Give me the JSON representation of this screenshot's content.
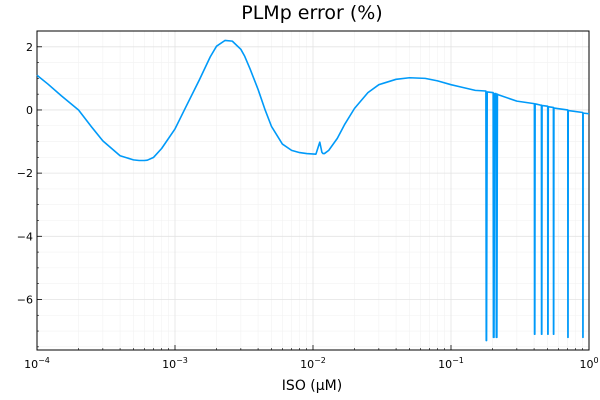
{
  "chart_data": {
    "type": "line",
    "title": "PLMp error (%)",
    "xlabel": "ISO (μM)",
    "ylabel": "",
    "x_scale": "log10",
    "xlim": [
      0.0001,
      1
    ],
    "ylim": [
      -7.6,
      2.5
    ],
    "x_ticks": [
      {
        "value": 0.0001,
        "base": "10",
        "exp": "−4"
      },
      {
        "value": 0.001,
        "base": "10",
        "exp": "−3"
      },
      {
        "value": 0.01,
        "base": "10",
        "exp": "−2"
      },
      {
        "value": 0.1,
        "base": "10",
        "exp": "−1"
      },
      {
        "value": 1,
        "base": "10",
        "exp": "0"
      }
    ],
    "y_ticks": [
      {
        "value": 2,
        "label": "2"
      },
      {
        "value": 0,
        "label": "0"
      },
      {
        "value": -2,
        "label": "−2"
      },
      {
        "value": -4,
        "label": "−4"
      },
      {
        "value": -6,
        "label": "−6"
      }
    ],
    "grid": true,
    "legend": "none",
    "series_color": "#009af9",
    "series": [
      {
        "x": [
          0.0001,
          0.00012,
          0.00015,
          0.0002,
          0.00025,
          0.0003,
          0.0004,
          0.0005,
          0.00055,
          0.0006,
          0.00063,
          0.0007,
          0.0008,
          0.001,
          0.0012,
          0.0015,
          0.0018,
          0.002,
          0.0023,
          0.0026,
          0.003,
          0.0032,
          0.0035,
          0.004,
          0.0045,
          0.005,
          0.006,
          0.007,
          0.008,
          0.009,
          0.0105,
          0.0112,
          0.0114,
          0.0116,
          0.0118,
          0.0121,
          0.013,
          0.015,
          0.017,
          0.02,
          0.025,
          0.03,
          0.04,
          0.05,
          0.065,
          0.08,
          0.1,
          0.12,
          0.15,
          0.178,
          0.179,
          0.18,
          0.181,
          0.183,
          0.2,
          0.202,
          0.203,
          0.205,
          0.207,
          0.21,
          0.212,
          0.213,
          0.215,
          0.217,
          0.22,
          0.3,
          0.4,
          0.402,
          0.403,
          0.405,
          0.407,
          0.41,
          0.45,
          0.452,
          0.453,
          0.455,
          0.457,
          0.46,
          0.5,
          0.502,
          0.503,
          0.505,
          0.507,
          0.51,
          0.55,
          0.552,
          0.553,
          0.555,
          0.557,
          0.56,
          0.6,
          0.7,
          0.702,
          0.703,
          0.705,
          0.707,
          0.71,
          0.9,
          0.902,
          0.903,
          0.905,
          0.907,
          0.91,
          1.0
        ],
        "y": [
          1.1,
          0.82,
          0.45,
          0.0,
          -0.55,
          -0.98,
          -1.45,
          -1.58,
          -1.6,
          -1.6,
          -1.59,
          -1.5,
          -1.22,
          -0.6,
          0.1,
          0.95,
          1.68,
          2.02,
          2.2,
          2.18,
          1.92,
          1.7,
          1.3,
          0.65,
          0.0,
          -0.52,
          -1.08,
          -1.28,
          -1.35,
          -1.38,
          -1.4,
          -1.02,
          -1.18,
          -1.34,
          -1.38,
          -1.38,
          -1.28,
          -0.9,
          -0.45,
          0.05,
          0.55,
          0.8,
          0.97,
          1.02,
          1.0,
          0.92,
          0.8,
          0.72,
          0.62,
          0.6,
          0.6,
          -7.3,
          -7.3,
          0.57,
          0.55,
          0.55,
          -7.2,
          -7.2,
          0.52,
          0.52,
          0.52,
          -7.2,
          -7.2,
          0.5,
          0.48,
          0.28,
          0.2,
          0.2,
          -7.1,
          -7.1,
          0.19,
          0.19,
          0.15,
          0.15,
          -7.1,
          -7.1,
          0.14,
          0.14,
          0.12,
          0.12,
          -7.1,
          -7.1,
          0.1,
          0.1,
          0.08,
          0.08,
          -7.1,
          -7.1,
          0.06,
          0.06,
          0.04,
          0.0,
          0.0,
          -7.2,
          -7.2,
          -0.02,
          -0.02,
          -0.08,
          -0.08,
          -7.2,
          -7.2,
          -0.1,
          -0.1,
          -0.12
        ]
      }
    ]
  }
}
